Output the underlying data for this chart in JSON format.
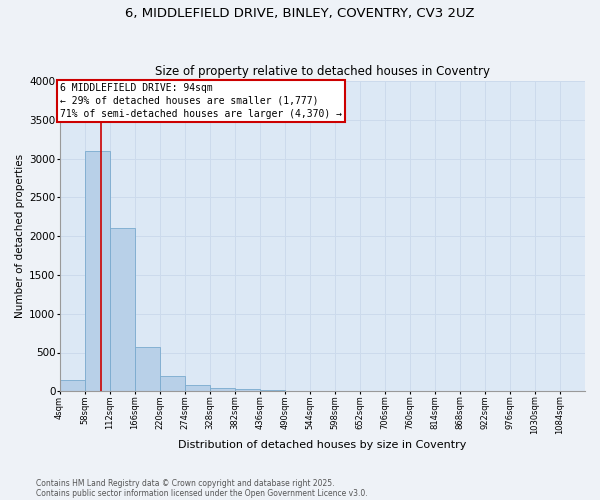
{
  "title_line1": "6, MIDDLEFIELD DRIVE, BINLEY, COVENTRY, CV3 2UZ",
  "title_line2": "Size of property relative to detached houses in Coventry",
  "xlabel": "Distribution of detached houses by size in Coventry",
  "ylabel": "Number of detached properties",
  "bin_edges": [
    4,
    58,
    112,
    166,
    220,
    274,
    328,
    382,
    436,
    490,
    544,
    598,
    652,
    706,
    760,
    814,
    868,
    922,
    976,
    1030,
    1084
  ],
  "counts": [
    150,
    3100,
    2100,
    575,
    200,
    75,
    40,
    30,
    20,
    0,
    0,
    0,
    0,
    0,
    0,
    0,
    0,
    0,
    0,
    0
  ],
  "bar_color": "#b8d0e8",
  "bar_edge_color": "#7aaace",
  "grid_color": "#ccdaec",
  "property_size": 94,
  "red_line_color": "#cc0000",
  "annotation_line1": "6 MIDDLEFIELD DRIVE: 94sqm",
  "annotation_line2": "← 29% of detached houses are smaller (1,777)",
  "annotation_line3": "71% of semi-detached houses are larger (4,370) →",
  "annotation_box_color": "#cc0000",
  "ylim": [
    0,
    4000
  ],
  "yticks": [
    0,
    500,
    1000,
    1500,
    2000,
    2500,
    3000,
    3500,
    4000
  ],
  "footnote_line1": "Contains HM Land Registry data © Crown copyright and database right 2025.",
  "footnote_line2": "Contains public sector information licensed under the Open Government Licence v3.0.",
  "bg_color": "#eef2f7",
  "plot_bg_color": "#dce8f5"
}
